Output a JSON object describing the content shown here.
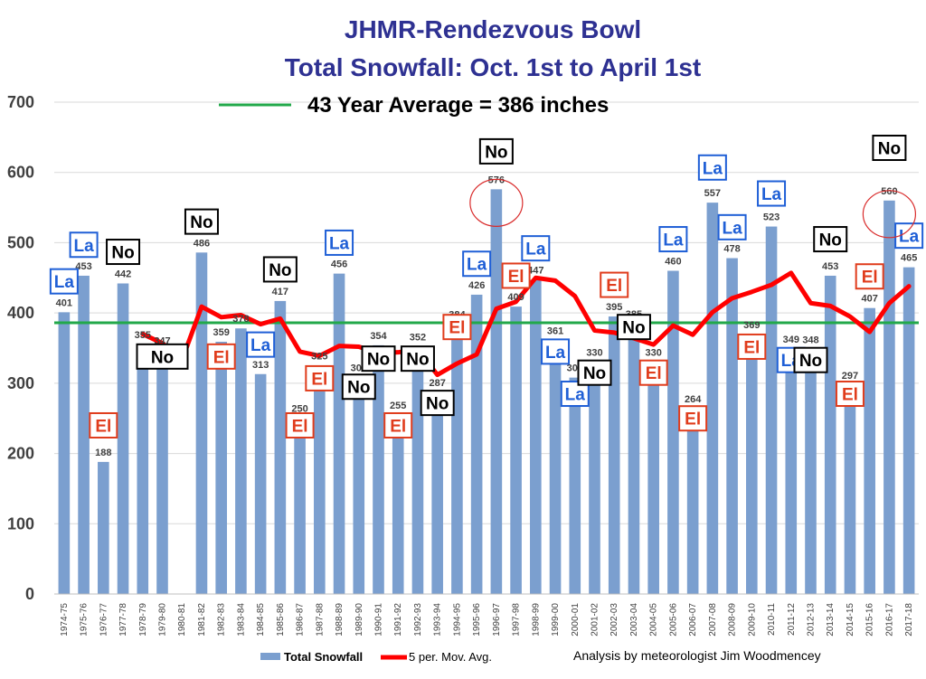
{
  "chart_data": {
    "type": "bar",
    "title": "JHMR-Rendezvous Bowl",
    "subtitle": "Total Snowfall: Oct. 1st to April 1st",
    "average_label": "43 Year Average = 386 inches",
    "average_value": 386,
    "ylim": [
      0,
      700
    ],
    "yticks": [
      0,
      100,
      200,
      300,
      400,
      500,
      600,
      700
    ],
    "grid": true,
    "legend_position": "bottom-center",
    "credit": "Analysis by meteorologist Jim Woodmencey",
    "colors": {
      "bars": "#7b9fcf",
      "moving_avg": "#ff0000",
      "average_line": "#22a84a",
      "title": "#2e3192",
      "la": "#1f5fd6",
      "el": "#e03c1c",
      "no": "#000000",
      "highlight_circle": "#d92b2b"
    },
    "categories": [
      "1974-75",
      "1975-76",
      "1976-77",
      "1977-78",
      "1978-79",
      "1979-80",
      "1980-81",
      "1981-82",
      "1982-83",
      "1983-84",
      "1984-85",
      "1985-86",
      "1986-87",
      "1987-88",
      "1988-89",
      "1989-90",
      "1990-91",
      "1991-92",
      "1992-93",
      "1993-94",
      "1994-95",
      "1995-96",
      "1996-97",
      "1997-98",
      "1998-99",
      "1999-00",
      "2000-01",
      "2001-02",
      "2002-03",
      "2003-04",
      "2004-05",
      "2005-06",
      "2006-07",
      "2007-08",
      "2008-09",
      "2009-10",
      "2010-11",
      "2011-12",
      "2012-13",
      "2013-14",
      "2014-15",
      "2015-16",
      "2016-17",
      "2017-18"
    ],
    "series": [
      {
        "name": "Total Snowfall",
        "type": "bar",
        "values": [
          401,
          453,
          188,
          442,
          355,
          347,
          null,
          486,
          359,
          378,
          313,
          417,
          250,
          325,
          456,
          308,
          354,
          255,
          352,
          287,
          384,
          426,
          576,
          409,
          447,
          361,
          308,
          330,
          395,
          385,
          330,
          460,
          264,
          557,
          478,
          369,
          523,
          349,
          348,
          453,
          297,
          407,
          560,
          465
        ]
      },
      {
        "name": "5 per. Mov. Avg.",
        "type": "line",
        "values": [
          null,
          null,
          null,
          null,
          370,
          357,
          333,
          409,
          394,
          397,
          384,
          392,
          345,
          339,
          353,
          352,
          343,
          344,
          348,
          312,
          328,
          341,
          406,
          416,
          450,
          446,
          424,
          375,
          372,
          364,
          355,
          382,
          369,
          401,
          421,
          430,
          440,
          457,
          414,
          410,
          395,
          373,
          414,
          438
        ]
      }
    ],
    "value_labels": [
      "401",
      "453",
      "188",
      "442",
      "355",
      "347",
      "",
      "486",
      "359",
      "378",
      "313",
      "417",
      "250",
      "325",
      "456",
      "308",
      "354",
      "255",
      "352",
      "287",
      "384",
      "426",
      "576",
      "409",
      "447",
      "361",
      "308",
      "330",
      "395",
      "385",
      "330",
      "460",
      "264",
      "557",
      "478",
      "369",
      "523",
      "349",
      "348",
      "453",
      "297",
      "407",
      "560",
      "465"
    ],
    "enso_labels": [
      {
        "text": "La",
        "category": "1974-75",
        "y": 445,
        "kind": "la"
      },
      {
        "text": "La",
        "category": "1975-76",
        "y": 497,
        "kind": "la"
      },
      {
        "text": "El",
        "category": "1976-77",
        "y": 240,
        "kind": "el"
      },
      {
        "text": "No",
        "category": "1977-78",
        "y": 487,
        "kind": "no"
      },
      {
        "text": "No",
        "category": "1979-80",
        "y": 338,
        "kind": "no",
        "wide": true
      },
      {
        "text": "No",
        "category": "1981-82",
        "y": 530,
        "kind": "no"
      },
      {
        "text": "El",
        "category": "1982-83",
        "y": 338,
        "kind": "el"
      },
      {
        "text": "La",
        "category": "1984-85",
        "y": 355,
        "kind": "la"
      },
      {
        "text": "No",
        "category": "1985-86",
        "y": 462,
        "kind": "no"
      },
      {
        "text": "El",
        "category": "1986-87",
        "y": 240,
        "kind": "el"
      },
      {
        "text": "El",
        "category": "1987-88",
        "y": 307,
        "kind": "el"
      },
      {
        "text": "La",
        "category": "1988-89",
        "y": 500,
        "kind": "la"
      },
      {
        "text": "No",
        "category": "1989-90",
        "y": 295,
        "kind": "no"
      },
      {
        "text": "No",
        "category": "1990-91",
        "y": 335,
        "kind": "no"
      },
      {
        "text": "El",
        "category": "1991-92",
        "y": 240,
        "kind": "el"
      },
      {
        "text": "No",
        "category": "1992-93",
        "y": 335,
        "kind": "no"
      },
      {
        "text": "No",
        "category": "1993-94",
        "y": 272,
        "kind": "no"
      },
      {
        "text": "El",
        "category": "1994-95",
        "y": 380,
        "kind": "el"
      },
      {
        "text": "La",
        "category": "1995-96",
        "y": 470,
        "kind": "la"
      },
      {
        "text": "No",
        "category": "1996-97",
        "y": 630,
        "kind": "no"
      },
      {
        "text": "El",
        "category": "1997-98",
        "y": 453,
        "kind": "el"
      },
      {
        "text": "La",
        "category": "1998-99",
        "y": 492,
        "kind": "la"
      },
      {
        "text": "La",
        "category": "1999-00",
        "y": 345,
        "kind": "la"
      },
      {
        "text": "La",
        "category": "2000-01",
        "y": 285,
        "kind": "la"
      },
      {
        "text": "No",
        "category": "2001-02",
        "y": 315,
        "kind": "no"
      },
      {
        "text": "El",
        "category": "2002-03",
        "y": 440,
        "kind": "el"
      },
      {
        "text": "No",
        "category": "2003-04",
        "y": 380,
        "kind": "no"
      },
      {
        "text": "El",
        "category": "2004-05",
        "y": 315,
        "kind": "el"
      },
      {
        "text": "La",
        "category": "2005-06",
        "y": 505,
        "kind": "la"
      },
      {
        "text": "El",
        "category": "2006-07",
        "y": 250,
        "kind": "el"
      },
      {
        "text": "La",
        "category": "2007-08",
        "y": 607,
        "kind": "la"
      },
      {
        "text": "La",
        "category": "2008-09",
        "y": 522,
        "kind": "la"
      },
      {
        "text": "El",
        "category": "2009-10",
        "y": 352,
        "kind": "el"
      },
      {
        "text": "La",
        "category": "2010-11",
        "y": 570,
        "kind": "la"
      },
      {
        "text": "La",
        "category": "2011-12",
        "y": 333,
        "kind": "la"
      },
      {
        "text": "No",
        "category": "2012-13",
        "y": 333,
        "kind": "no"
      },
      {
        "text": "No",
        "category": "2013-14",
        "y": 505,
        "kind": "no"
      },
      {
        "text": "El",
        "category": "2014-15",
        "y": 285,
        "kind": "el"
      },
      {
        "text": "El",
        "category": "2015-16",
        "y": 452,
        "kind": "el"
      },
      {
        "text": "No",
        "category": "2016-17",
        "y": 635,
        "kind": "no"
      },
      {
        "text": "La",
        "category": "2017-18",
        "y": 510,
        "kind": "la"
      }
    ],
    "highlight_circles": [
      "1996-97",
      "2016-17"
    ]
  }
}
